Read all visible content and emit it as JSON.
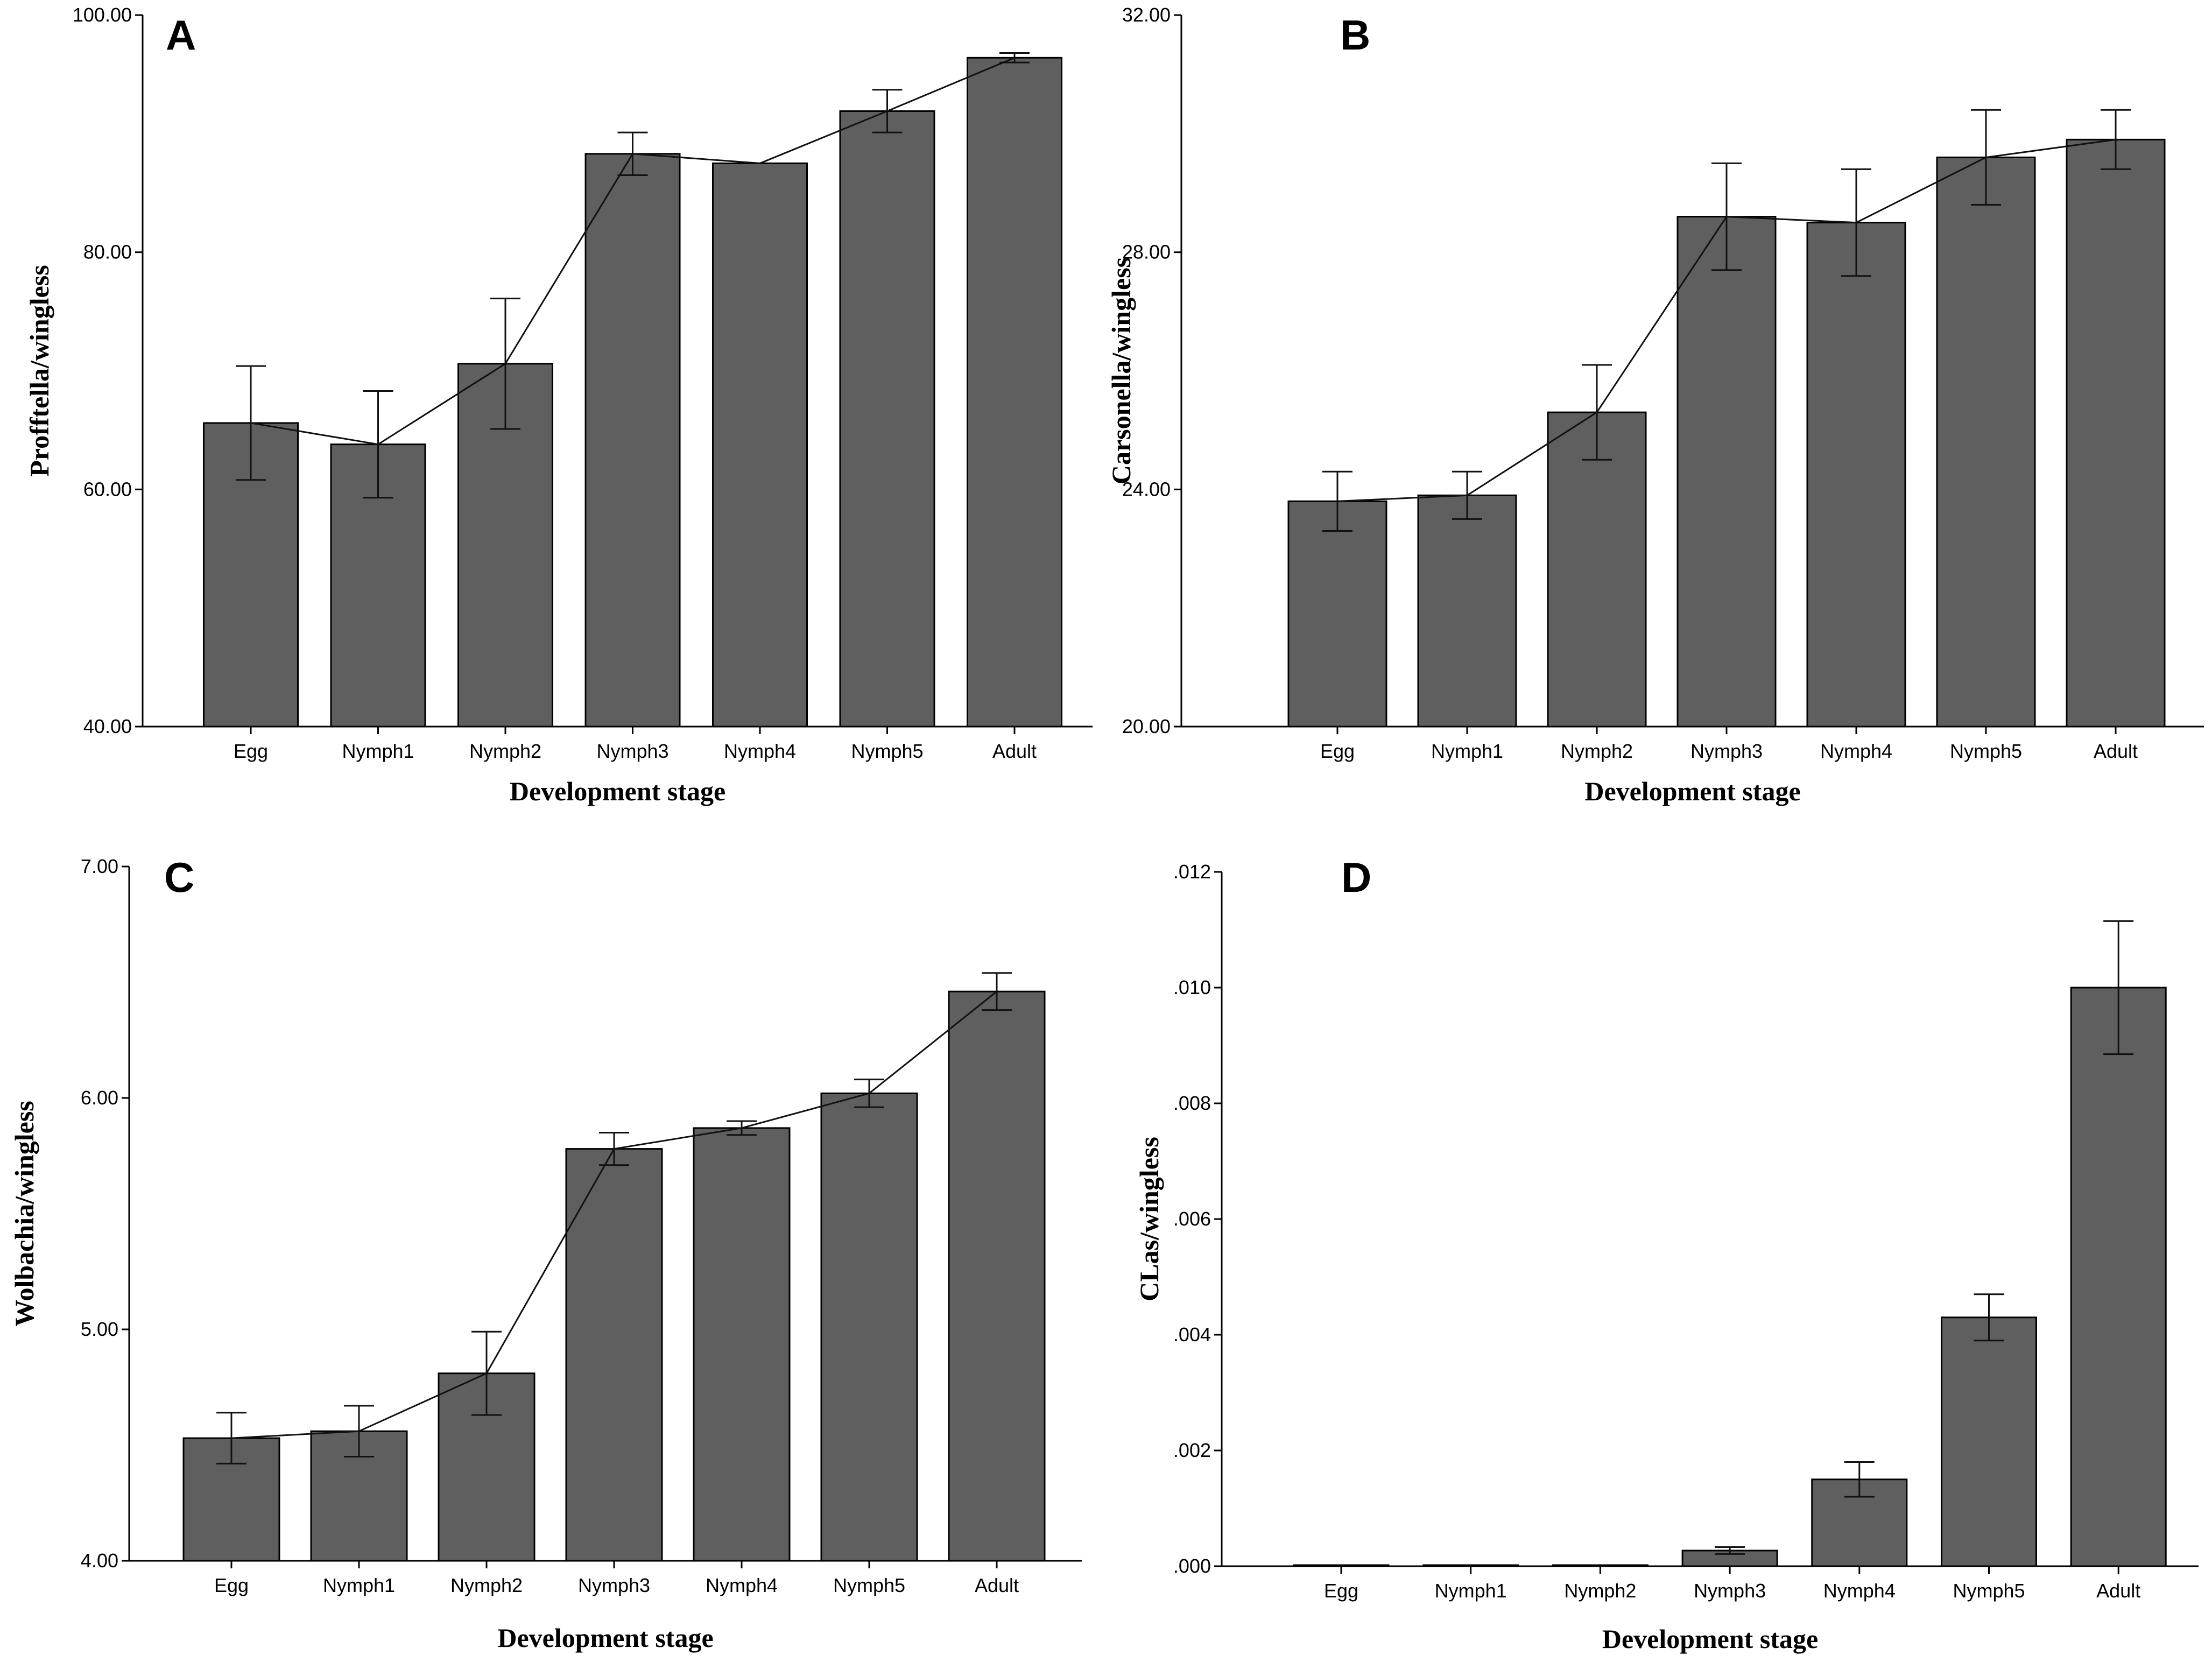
{
  "chart_data": [
    {
      "panel": "A",
      "type": "bar",
      "title": "",
      "xlabel": "Development stage",
      "ylabel": "Profftella/wingless",
      "categories": [
        "Egg",
        "Nymph1",
        "Nymph2",
        "Nymph3",
        "Nymph4",
        "Nymph5",
        "Adult"
      ],
      "values": [
        65.6,
        63.8,
        70.6,
        88.3,
        87.5,
        91.9,
        96.4
      ],
      "errors": [
        4.8,
        4.5,
        5.5,
        1.8,
        0.0,
        1.8,
        0.4
      ],
      "trend_line": true,
      "ylim": [
        40,
        100
      ],
      "yticks": [
        40,
        60,
        80,
        100
      ],
      "ytick_labels": [
        "40.00",
        "60.00",
        "80.00",
        "100.00"
      ]
    },
    {
      "panel": "B",
      "type": "bar",
      "title": "",
      "xlabel": "Development stage",
      "ylabel": "Carsonella/wingless",
      "categories": [
        "Egg",
        "Nymph1",
        "Nymph2",
        "Nymph3",
        "Nymph4",
        "Nymph5",
        "Adult"
      ],
      "values": [
        23.8,
        23.9,
        25.3,
        28.6,
        28.5,
        29.6,
        29.9
      ],
      "errors": [
        0.5,
        0.4,
        0.8,
        0.9,
        0.9,
        0.8,
        0.5
      ],
      "trend_line": true,
      "ylim": [
        20,
        32
      ],
      "yticks": [
        20,
        24,
        28,
        32
      ],
      "ytick_labels": [
        "20.00",
        "24.00",
        "28.00",
        "32.00"
      ]
    },
    {
      "panel": "C",
      "type": "bar",
      "title": "",
      "xlabel": "Development stage",
      "ylabel": "Wolbachia/wingless",
      "categories": [
        "Egg",
        "Nymph1",
        "Nymph2",
        "Nymph3",
        "Nymph4",
        "Nymph5",
        "Adult"
      ],
      "values": [
        4.53,
        4.56,
        4.81,
        5.78,
        5.87,
        6.02,
        6.46
      ],
      "errors": [
        0.11,
        0.11,
        0.18,
        0.07,
        0.03,
        0.06,
        0.08
      ],
      "trend_line": true,
      "ylim": [
        4,
        7
      ],
      "yticks": [
        4,
        5,
        6,
        7
      ],
      "ytick_labels": [
        "4.00",
        "5.00",
        "6.00",
        "7.00"
      ]
    },
    {
      "panel": "D",
      "type": "bar",
      "title": "",
      "xlabel": "Development stage",
      "ylabel": "CLas/wingless",
      "categories": [
        "Egg",
        "Nymph1",
        "Nymph2",
        "Nymph3",
        "Nymph4",
        "Nymph5",
        "Adult"
      ],
      "values": [
        0.0,
        0.0,
        0.0,
        0.00027,
        0.0015,
        0.0043,
        0.01
      ],
      "errors": [
        0.0,
        0.0,
        0.0,
        6e-05,
        0.0003,
        0.0004,
        0.00115
      ],
      "trend_line": false,
      "ylim": [
        0,
        0.012
      ],
      "yticks": [
        0,
        0.002,
        0.004,
        0.006,
        0.008,
        0.01,
        0.012
      ],
      "ytick_labels": [
        ".000",
        ".002",
        ".004",
        ".006",
        ".008",
        ".010",
        ".012"
      ]
    }
  ]
}
